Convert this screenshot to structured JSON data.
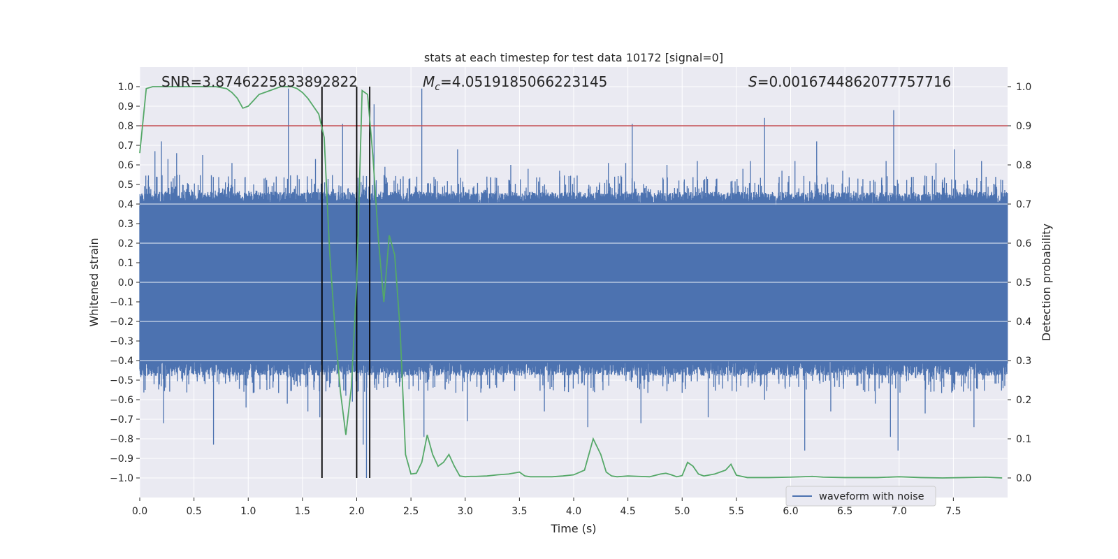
{
  "chart_data": {
    "type": "line",
    "title": "stats at each timestep for test data 10172 [signal=0]",
    "xlabel": "Time (s)",
    "ylabel_left": "Whitened strain",
    "ylabel_right": "Detection probability",
    "xlim": [
      0.0,
      8.0
    ],
    "ylim_left": [
      -1.1,
      1.1
    ],
    "ylim_right": [
      -0.05,
      1.05
    ],
    "grid": true,
    "legend_position": "bottom-right",
    "x_ticks": [
      "0.0",
      "0.5",
      "1.0",
      "1.5",
      "2.0",
      "2.5",
      "3.0",
      "3.5",
      "4.0",
      "4.5",
      "5.0",
      "5.5",
      "6.0",
      "6.5",
      "7.0",
      "7.5"
    ],
    "x_tick_values": [
      0.0,
      0.5,
      1.0,
      1.5,
      2.0,
      2.5,
      3.0,
      3.5,
      4.0,
      4.5,
      5.0,
      5.5,
      6.0,
      6.5,
      7.0,
      7.5
    ],
    "y_left_ticks": [
      "1.0",
      "0.9",
      "0.8",
      "0.7",
      "0.6",
      "0.5",
      "0.4",
      "0.3",
      "0.2",
      "0.1",
      "0.0",
      "−0.1",
      "−0.2",
      "−0.3",
      "−0.4",
      "−0.5",
      "−0.6",
      "−0.7",
      "−0.8",
      "−0.9",
      "−1.0"
    ],
    "y_left_tick_values": [
      1.0,
      0.9,
      0.8,
      0.7,
      0.6,
      0.5,
      0.4,
      0.3,
      0.2,
      0.1,
      0.0,
      -0.1,
      -0.2,
      -0.3,
      -0.4,
      -0.5,
      -0.6,
      -0.7,
      -0.8,
      -0.9,
      -1.0
    ],
    "y_right_ticks": [
      "1.0",
      "0.9",
      "0.8",
      "0.7",
      "0.6",
      "0.5",
      "0.4",
      "0.3",
      "0.2",
      "0.1",
      "0.0"
    ],
    "y_right_tick_values": [
      1.0,
      0.9,
      0.8,
      0.7,
      0.6,
      0.5,
      0.4,
      0.3,
      0.2,
      0.1,
      0.0
    ],
    "annotations": {
      "snr": "SNR=3.8746225833892822",
      "mc_symbol": "M",
      "mc_subscript": "c",
      "mc_value": "=4.0519185066223145",
      "s_symbol": "S",
      "s_value": "=0.0016744862077757716"
    },
    "threshold": {
      "value": 0.9,
      "axis": "right",
      "color": "#c44e52"
    },
    "vertical_lines": [
      1.68,
      2.0,
      2.12
    ],
    "series": [
      {
        "name": "waveform with noise",
        "axis": "left",
        "color": "#4c72b0",
        "dt": 0.002,
        "band": 0.39,
        "noise_amp": 0.16,
        "seed": 10172,
        "peaks": [
          [
            0.14,
            0.67
          ],
          [
            0.2,
            0.72
          ],
          [
            0.22,
            -0.72
          ],
          [
            0.26,
            0.63
          ],
          [
            0.34,
            0.66
          ],
          [
            0.58,
            0.65
          ],
          [
            0.68,
            -0.83
          ],
          [
            0.85,
            0.61
          ],
          [
            0.98,
            -0.64
          ],
          [
            1.37,
            0.99
          ],
          [
            1.36,
            -0.62
          ],
          [
            1.55,
            -0.66
          ],
          [
            1.62,
            0.63
          ],
          [
            1.66,
            -0.69
          ],
          [
            1.87,
            0.81
          ],
          [
            1.9,
            -0.58
          ],
          [
            1.96,
            -0.61
          ],
          [
            2.06,
            -0.83
          ],
          [
            2.09,
            -1.0
          ],
          [
            2.12,
            -0.98
          ],
          [
            2.16,
            0.91
          ],
          [
            2.26,
            0.59
          ],
          [
            2.6,
            0.99
          ],
          [
            2.62,
            -0.79
          ],
          [
            2.93,
            0.68
          ],
          [
            3.02,
            -0.71
          ],
          [
            3.2,
            0.54
          ],
          [
            3.42,
            0.6
          ],
          [
            3.58,
            0.58
          ],
          [
            3.73,
            -0.66
          ],
          [
            3.87,
            0.57
          ],
          [
            4.13,
            -0.74
          ],
          [
            4.24,
            0.51
          ],
          [
            4.32,
            0.61
          ],
          [
            4.48,
            0.61
          ],
          [
            4.54,
            0.81
          ],
          [
            4.62,
            -0.72
          ],
          [
            4.86,
            0.6
          ],
          [
            4.97,
            0.52
          ],
          [
            5.14,
            0.62
          ],
          [
            5.24,
            -0.69
          ],
          [
            5.32,
            0.53
          ],
          [
            5.56,
            0.58
          ],
          [
            5.63,
            0.62
          ],
          [
            5.76,
            0.84
          ],
          [
            5.76,
            -0.6
          ],
          [
            5.92,
            0.57
          ],
          [
            6.04,
            0.62
          ],
          [
            6.13,
            -0.86
          ],
          [
            6.24,
            0.72
          ],
          [
            6.37,
            -0.66
          ],
          [
            6.48,
            0.57
          ],
          [
            6.62,
            0.53
          ],
          [
            6.78,
            -0.62
          ],
          [
            6.88,
            0.62
          ],
          [
            6.95,
            0.88
          ],
          [
            6.92,
            -0.79
          ],
          [
            6.99,
            -0.86
          ],
          [
            7.24,
            -0.67
          ],
          [
            7.34,
            0.61
          ],
          [
            7.51,
            0.68
          ],
          [
            7.69,
            -0.74
          ],
          [
            7.76,
            0.62
          ]
        ]
      },
      {
        "name": "Detection probability",
        "axis": "right",
        "color": "#55a868",
        "x": [
          0.0,
          0.06,
          0.12,
          0.2,
          0.3,
          0.5,
          0.7,
          0.8,
          0.85,
          0.9,
          0.95,
          1.0,
          1.05,
          1.1,
          1.2,
          1.3,
          1.4,
          1.45,
          1.5,
          1.55,
          1.6,
          1.65,
          1.7,
          1.75,
          1.8,
          1.85,
          1.9,
          1.95,
          2.0,
          2.05,
          2.1,
          2.15,
          2.2,
          2.25,
          2.3,
          2.35,
          2.4,
          2.45,
          2.5,
          2.55,
          2.6,
          2.65,
          2.7,
          2.75,
          2.8,
          2.85,
          2.9,
          2.95,
          3.0,
          3.05,
          3.1,
          3.2,
          3.3,
          3.4,
          3.5,
          3.55,
          3.6,
          3.7,
          3.8,
          3.9,
          4.0,
          4.1,
          4.18,
          4.25,
          4.3,
          4.35,
          4.4,
          4.5,
          4.6,
          4.7,
          4.8,
          4.85,
          4.9,
          4.95,
          5.0,
          5.05,
          5.1,
          5.15,
          5.2,
          5.3,
          5.4,
          5.45,
          5.5,
          5.6,
          5.8,
          6.0,
          6.2,
          6.3,
          6.5,
          6.8,
          7.0,
          7.2,
          7.4,
          7.6,
          7.8,
          7.95
        ],
        "values": [
          0.83,
          0.995,
          1.0,
          1.0,
          1.0,
          1.0,
          1.0,
          0.995,
          0.985,
          0.97,
          0.945,
          0.95,
          0.965,
          0.98,
          0.99,
          1.0,
          1.0,
          0.995,
          0.985,
          0.97,
          0.95,
          0.93,
          0.87,
          0.58,
          0.38,
          0.22,
          0.11,
          0.23,
          0.5,
          0.99,
          0.98,
          0.82,
          0.61,
          0.45,
          0.62,
          0.57,
          0.38,
          0.06,
          0.01,
          0.012,
          0.04,
          0.11,
          0.06,
          0.03,
          0.04,
          0.06,
          0.03,
          0.005,
          0.003,
          0.004,
          0.004,
          0.005,
          0.008,
          0.01,
          0.015,
          0.005,
          0.003,
          0.003,
          0.003,
          0.005,
          0.008,
          0.02,
          0.1,
          0.06,
          0.015,
          0.005,
          0.003,
          0.005,
          0.004,
          0.003,
          0.01,
          0.012,
          0.008,
          0.003,
          0.006,
          0.04,
          0.03,
          0.01,
          0.005,
          0.01,
          0.02,
          0.035,
          0.007,
          0.001,
          0.001,
          0.002,
          0.004,
          0.002,
          0.001,
          0.001,
          0.003,
          0.001,
          0.0,
          0.001,
          0.002,
          0.0
        ]
      }
    ]
  }
}
